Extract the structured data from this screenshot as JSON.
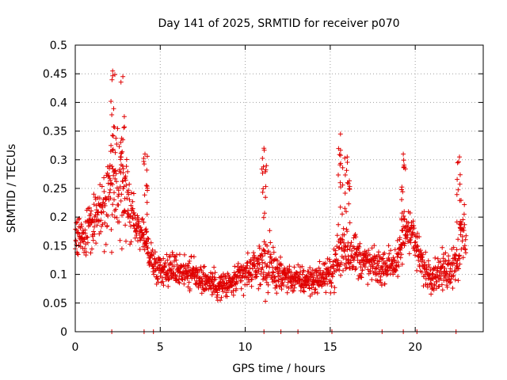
{
  "chart_data": {
    "type": "scatter",
    "title": "Day 141 of 2025, SRMTID for receiver p070",
    "xlabel": "GPS time / hours",
    "ylabel": "SRMTID / TECUs",
    "xlim": [
      0,
      24
    ],
    "ylim": [
      0,
      0.5
    ],
    "x_ticks": [
      0,
      5,
      10,
      15,
      20
    ],
    "y_ticks": [
      0,
      0.05,
      0.1,
      0.15,
      0.2,
      0.25,
      0.3,
      0.35,
      0.4,
      0.45,
      0.5
    ],
    "x_tick_labels": [
      "0",
      "5",
      "10",
      "15",
      "20"
    ],
    "y_tick_labels": [
      "0",
      "0.05",
      "0.1",
      "0.15",
      "0.2",
      "0.25",
      "0.3",
      "0.35",
      "0.4",
      "0.45",
      "0.5"
    ],
    "grid": true,
    "marker": "+",
    "color": "#e00000",
    "series": [
      {
        "name": "SRMTID",
        "envelope_hours": [
          0,
          0.5,
          1,
          1.5,
          2,
          2.3,
          2.5,
          2.8,
          3,
          3.5,
          4,
          4.3,
          4.6,
          5,
          6,
          7,
          8,
          8.5,
          9,
          10,
          11,
          11.2,
          12,
          13,
          14,
          15,
          15.5,
          15.8,
          16.3,
          17,
          18,
          18.5,
          19,
          19.3,
          19.7,
          20,
          20.5,
          21,
          22,
          22.5,
          22.8,
          23
        ],
        "envelope_center": [
          0.17,
          0.16,
          0.19,
          0.21,
          0.23,
          0.26,
          0.25,
          0.24,
          0.23,
          0.19,
          0.17,
          0.14,
          0.12,
          0.11,
          0.11,
          0.1,
          0.085,
          0.08,
          0.08,
          0.1,
          0.12,
          0.12,
          0.1,
          0.09,
          0.09,
          0.1,
          0.13,
          0.15,
          0.14,
          0.12,
          0.11,
          0.12,
          0.12,
          0.17,
          0.19,
          0.15,
          0.11,
          0.1,
          0.11,
          0.13,
          0.17,
          0.17
        ],
        "envelope_spread": [
          0.04,
          0.04,
          0.06,
          0.06,
          0.09,
          0.12,
          0.12,
          0.1,
          0.09,
          0.05,
          0.04,
          0.03,
          0.03,
          0.03,
          0.035,
          0.035,
          0.03,
          0.03,
          0.03,
          0.035,
          0.04,
          0.07,
          0.03,
          0.03,
          0.03,
          0.03,
          0.06,
          0.08,
          0.05,
          0.04,
          0.035,
          0.035,
          0.04,
          0.06,
          0.06,
          0.04,
          0.035,
          0.035,
          0.04,
          0.05,
          0.07,
          0.07
        ],
        "peaks": [
          {
            "hour": 2.2,
            "value": 0.455
          },
          {
            "hour": 2.8,
            "value": 0.445
          },
          {
            "hour": 4.1,
            "value": 0.31
          },
          {
            "hour": 11.1,
            "value": 0.32
          },
          {
            "hour": 15.6,
            "value": 0.345
          },
          {
            "hour": 16.0,
            "value": 0.305
          },
          {
            "hour": 19.3,
            "value": 0.31
          },
          {
            "hour": 22.6,
            "value": 0.305
          }
        ],
        "zero_hours": [
          2.15,
          4.05,
          4.6,
          11.1,
          12.1,
          13.1,
          15.1,
          18.05,
          19.3,
          20.1,
          22.4
        ]
      }
    ]
  }
}
